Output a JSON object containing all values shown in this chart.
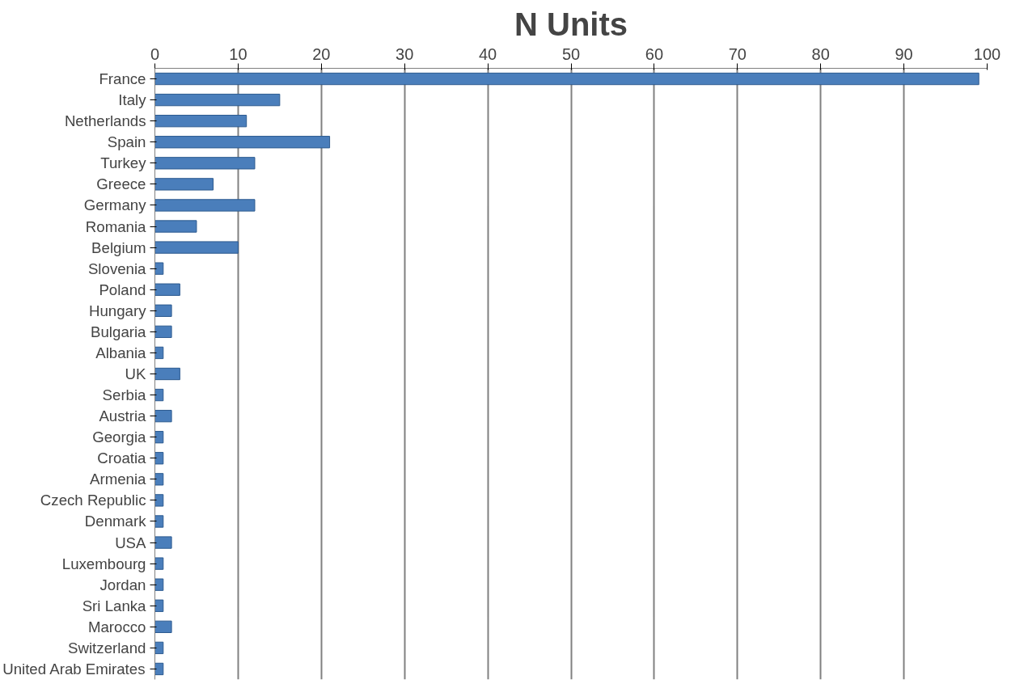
{
  "chart_data": {
    "type": "bar",
    "orientation": "horizontal",
    "title": "N Units",
    "categories": [
      "France",
      "Italy",
      "Netherlands",
      "Spain",
      "Turkey",
      "Greece",
      "Germany",
      "Romania",
      "Belgium",
      "Slovenia",
      "Poland",
      "Hungary",
      "Bulgaria",
      "Albania",
      "UK",
      "Serbia",
      "Austria",
      "Georgia",
      "Croatia",
      "Armenia",
      "Czech Republic",
      "Denmark",
      "USA",
      "Luxembourg",
      "Jordan",
      "Sri Lanka",
      "Marocco",
      "Switzerland",
      "United Arab Emirates"
    ],
    "values": [
      99,
      15,
      11,
      21,
      12,
      7,
      12,
      5,
      10,
      1,
      3,
      2,
      2,
      1,
      3,
      1,
      2,
      1,
      1,
      1,
      1,
      1,
      2,
      1,
      1,
      1,
      2,
      1,
      1
    ],
    "color": "#4a7ebb",
    "xlim": [
      0,
      100
    ],
    "xticks": [
      0,
      10,
      20,
      30,
      40,
      50,
      60,
      70,
      80,
      90,
      100
    ],
    "grid": "x"
  }
}
